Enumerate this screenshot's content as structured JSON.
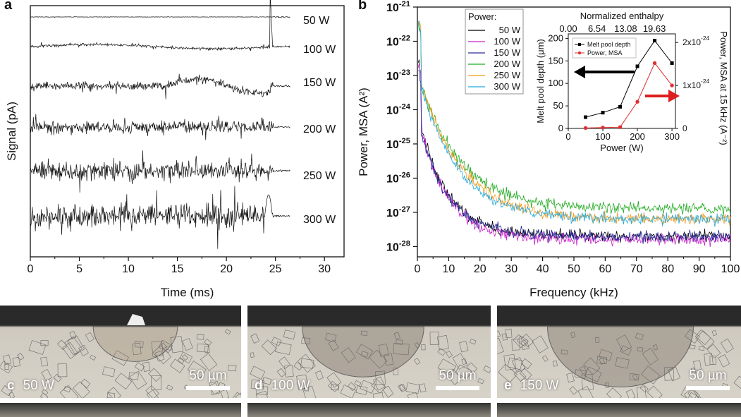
{
  "panel_a": {
    "letter": "a"
  },
  "panel_b": {
    "letter": "b"
  },
  "chart_data": [
    {
      "id": "a",
      "type": "line",
      "xlabel": "Time (ms)",
      "ylabel": "Signal (pA)",
      "xlim": [
        0,
        32
      ],
      "x_ticks": [
        "0",
        "5",
        "10",
        "15",
        "20",
        "25",
        "30"
      ],
      "series": [
        {
          "name": "50 W",
          "amp": 0.02,
          "burst": 0
        },
        {
          "name": "100 W",
          "amp": 0.12,
          "burst": 0.8
        },
        {
          "name": "150 W",
          "amp": 0.35,
          "burst": 0.6
        },
        {
          "name": "200 W",
          "amp": 0.55,
          "burst": 0.3
        },
        {
          "name": "250 W",
          "amp": 0.85,
          "burst": 0.4
        },
        {
          "name": "300 W",
          "amp": 1.0,
          "burst": 0.5
        }
      ]
    },
    {
      "id": "b",
      "type": "line",
      "xlabel": "Frequency (kHz)",
      "ylabel": "Power, MSA (A²)",
      "xlim": [
        0,
        100
      ],
      "ylim_log": [
        -28.3,
        -21
      ],
      "scale": "log",
      "x_ticks": [
        "0",
        "10",
        "20",
        "30",
        "40",
        "50",
        "60",
        "70",
        "80",
        "90",
        "100"
      ],
      "y_ticks": [
        {
          "base": "10",
          "exp": "-21"
        },
        {
          "base": "10",
          "exp": "-22"
        },
        {
          "base": "10",
          "exp": "-23"
        },
        {
          "base": "10",
          "exp": "-24"
        },
        {
          "base": "10",
          "exp": "-25"
        },
        {
          "base": "10",
          "exp": "-26"
        },
        {
          "base": "10",
          "exp": "-27"
        },
        {
          "base": "10",
          "exp": "-28"
        }
      ],
      "legend": {
        "title": "Power:",
        "placement": "top-left"
      },
      "series": [
        {
          "name": "50 W",
          "color": "#000000",
          "peak": -24,
          "floor": -27.7,
          "decay": 9
        },
        {
          "name": "100 W",
          "color": "#cc22cc",
          "peak": -24.1,
          "floor": -27.8,
          "decay": 9
        },
        {
          "name": "150 W",
          "color": "#2a2aa0",
          "peak": -24.2,
          "floor": -27.7,
          "decay": 9
        },
        {
          "name": "200 W",
          "color": "#22aa22",
          "peak": -22.9,
          "floor": -26.9,
          "decay": 13
        },
        {
          "name": "250 W",
          "color": "#f59a1a",
          "peak": -22.8,
          "floor": -27.2,
          "decay": 13
        },
        {
          "name": "300 W",
          "color": "#22aadd",
          "peak": -22.9,
          "floor": -27.2,
          "decay": 12
        }
      ],
      "inset": {
        "type": "line",
        "top_title": "Normalized enthalpy",
        "top_ticks": [
          "0.00",
          "6.54",
          "13.08",
          "19.63"
        ],
        "xlabel": "Power (W)",
        "ylabel_left": "Melt pool depth (μm)",
        "ylabel_right": "Power, MSA at 15 kHz (A⁻²)",
        "x_ticks": [
          "0",
          "100",
          "200",
          "300"
        ],
        "y_ticks_left": [
          "0",
          "50",
          "100",
          "150",
          "200"
        ],
        "y_ticks_right": [
          {
            "t": "0",
            "e": ""
          },
          {
            "t": "1x10",
            "e": "-24"
          },
          {
            "t": "2x10",
            "e": "-24"
          }
        ],
        "x": [
          50,
          100,
          150,
          200,
          250,
          300
        ],
        "melt_pool_depth": {
          "name": "Melt pool depth",
          "color": "#000000",
          "values": [
            25,
            35,
            48,
            138,
            195,
            145
          ]
        },
        "power_msa": {
          "name": "Power, MSA",
          "color": "#e03030",
          "values": [
            1e-26,
            2e-26,
            3e-26,
            6.2e-25,
            1.52e-24,
            1e-24
          ]
        },
        "xlim": [
          0,
          310
        ],
        "ylim_left": [
          0,
          210
        ],
        "ylim_right": [
          0,
          2.2e-24
        ]
      }
    }
  ],
  "micrographs": [
    {
      "letter": "c",
      "power": "50 W",
      "scale": "50 µm"
    },
    {
      "letter": "d",
      "power": "100 W",
      "scale": "50 µm"
    },
    {
      "letter": "e",
      "power": "150 W",
      "scale": "50 µm"
    }
  ]
}
